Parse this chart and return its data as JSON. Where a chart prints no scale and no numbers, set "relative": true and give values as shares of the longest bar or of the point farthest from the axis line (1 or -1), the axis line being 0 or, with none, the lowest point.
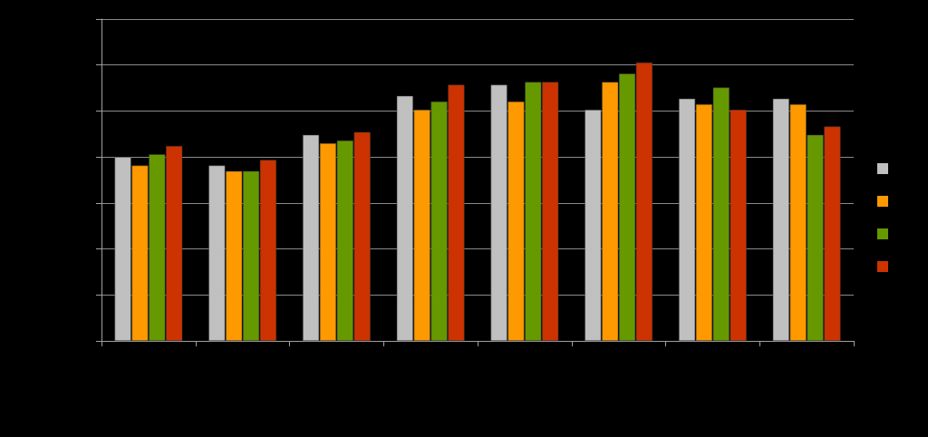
{
  "chart_data": {
    "type": "bar",
    "relative": true,
    "grid": "y",
    "categories": [
      null,
      null,
      null,
      null,
      null,
      null,
      null,
      null
    ],
    "series": [
      {
        "color": "#c0c0c0",
        "values": [
          0.66,
          0.63,
          0.74,
          0.88,
          0.92,
          0.83,
          0.87,
          0.87
        ]
      },
      {
        "color": "#ff9900",
        "values": [
          0.63,
          0.61,
          0.71,
          0.83,
          0.86,
          0.93,
          0.85,
          0.85
        ]
      },
      {
        "color": "#669900",
        "values": [
          0.67,
          0.61,
          0.72,
          0.86,
          0.93,
          0.96,
          0.91,
          0.74
        ]
      },
      {
        "color": "#cc3300",
        "values": [
          0.7,
          0.65,
          0.75,
          0.92,
          0.93,
          1,
          0.83,
          0.77
        ]
      }
    ]
  }
}
